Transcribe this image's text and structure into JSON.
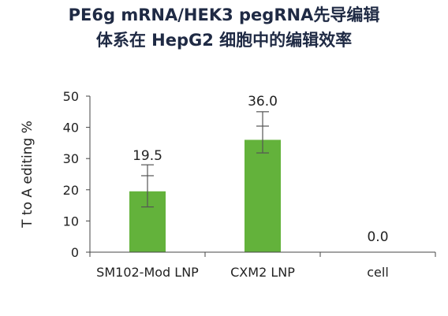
{
  "chart_data": {
    "type": "bar",
    "title_line1": "PE6g mRNA/HEK3 pegRNA先导编辑",
    "title_line2": "体系在 HepG2 细胞中的编辑效率",
    "xlabel": "",
    "ylabel": "T to A editing %",
    "ylim": [
      0,
      50
    ],
    "yticks": [
      "0",
      "10",
      "20",
      "30",
      "40",
      "50"
    ],
    "categories": [
      "SM102-Mod LNP",
      "CXM2 LNP",
      "cell"
    ],
    "values": [
      19.5,
      36.0,
      0.0
    ],
    "data_labels": [
      "19.5",
      "36.0",
      "0.0"
    ],
    "error_low": [
      14.5,
      31.8,
      null
    ],
    "error_high": [
      28.0,
      45.0,
      null
    ],
    "error_caps": [
      [
        24.5,
        28.0
      ],
      [
        40.4,
        45.0
      ],
      null
    ],
    "bar_color": "#63b23b",
    "grid": false
  }
}
